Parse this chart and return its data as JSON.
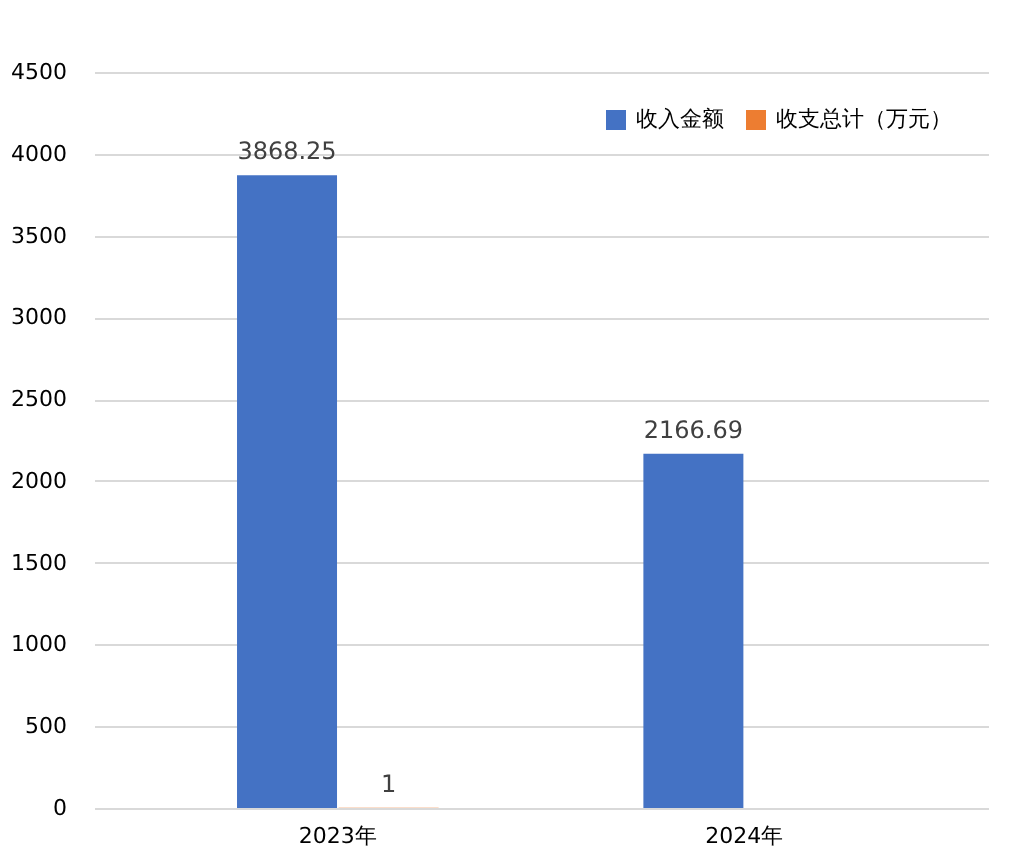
{
  "chart_data": {
    "type": "bar",
    "categories": [
      "2023年",
      "2024年"
    ],
    "series": [
      {
        "name": "收入金额",
        "color": "#4472c4",
        "values": [
          3868.25,
          2166.69
        ]
      },
      {
        "name": "收支总计（万元）",
        "color": "#ed7d31",
        "values": [
          1,
          null
        ]
      }
    ],
    "ylim": [
      0,
      4500
    ],
    "yticks": [
      0,
      500,
      1000,
      1500,
      2000,
      2500,
      3000,
      3500,
      4000,
      4500
    ],
    "grid": "y",
    "legend": "top right",
    "data_labels": true
  }
}
